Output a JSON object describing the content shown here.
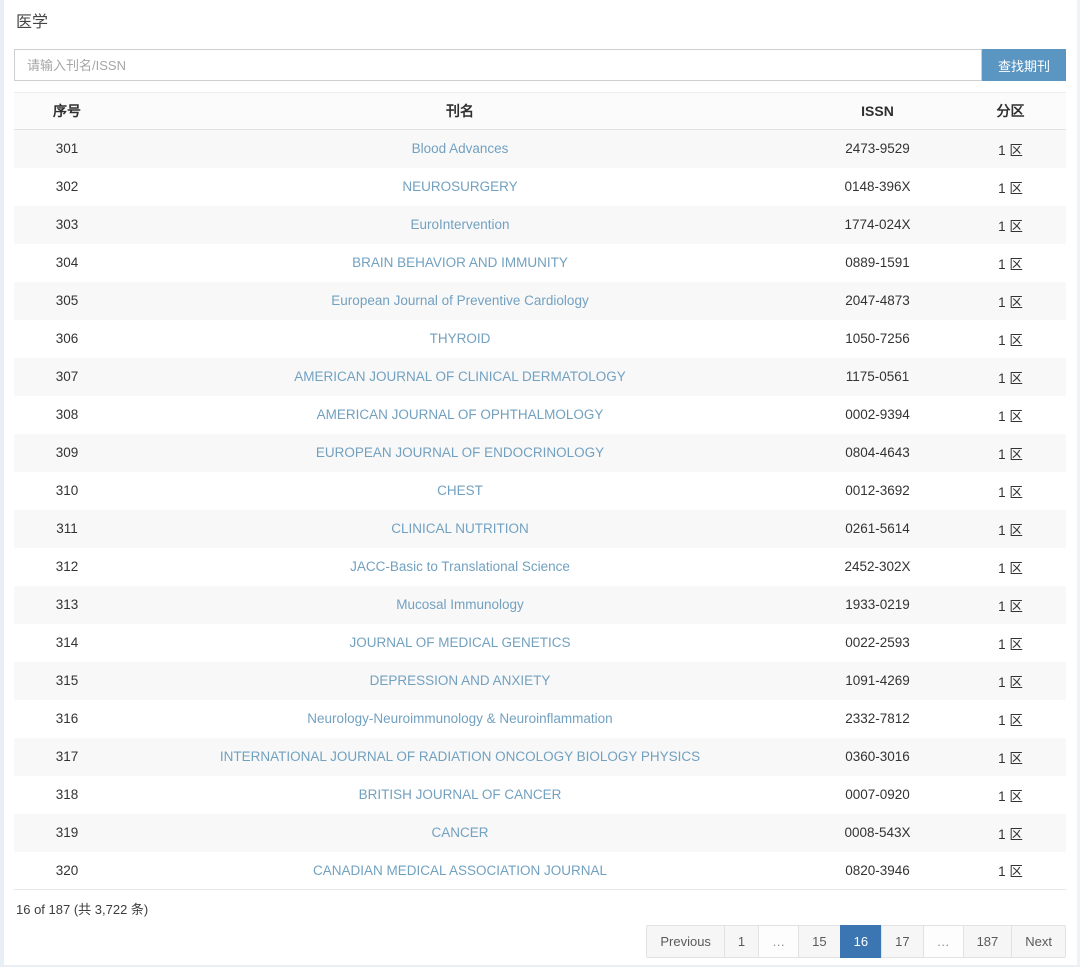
{
  "page": {
    "title": "医学"
  },
  "search": {
    "placeholder": "请输入刊名/ISSN",
    "button_label": "查找期刊"
  },
  "table": {
    "headers": {
      "index": "序号",
      "name": "刊名",
      "issn": "ISSN",
      "zone": "分区"
    },
    "rows": [
      {
        "index": "301",
        "name": "Blood Advances",
        "issn": "2473-9529",
        "zone": "1 区"
      },
      {
        "index": "302",
        "name": "NEUROSURGERY",
        "issn": "0148-396X",
        "zone": "1 区"
      },
      {
        "index": "303",
        "name": "EuroIntervention",
        "issn": "1774-024X",
        "zone": "1 区"
      },
      {
        "index": "304",
        "name": "BRAIN BEHAVIOR AND IMMUNITY",
        "issn": "0889-1591",
        "zone": "1 区"
      },
      {
        "index": "305",
        "name": "European Journal of Preventive Cardiology",
        "issn": "2047-4873",
        "zone": "1 区"
      },
      {
        "index": "306",
        "name": "THYROID",
        "issn": "1050-7256",
        "zone": "1 区"
      },
      {
        "index": "307",
        "name": "AMERICAN JOURNAL OF CLINICAL DERMATOLOGY",
        "issn": "1175-0561",
        "zone": "1 区"
      },
      {
        "index": "308",
        "name": "AMERICAN JOURNAL OF OPHTHALMOLOGY",
        "issn": "0002-9394",
        "zone": "1 区"
      },
      {
        "index": "309",
        "name": "EUROPEAN JOURNAL OF ENDOCRINOLOGY",
        "issn": "0804-4643",
        "zone": "1 区"
      },
      {
        "index": "310",
        "name": "CHEST",
        "issn": "0012-3692",
        "zone": "1 区"
      },
      {
        "index": "311",
        "name": "CLINICAL NUTRITION",
        "issn": "0261-5614",
        "zone": "1 区"
      },
      {
        "index": "312",
        "name": "JACC-Basic to Translational Science",
        "issn": "2452-302X",
        "zone": "1 区"
      },
      {
        "index": "313",
        "name": "Mucosal Immunology",
        "issn": "1933-0219",
        "zone": "1 区"
      },
      {
        "index": "314",
        "name": "JOURNAL OF MEDICAL GENETICS",
        "issn": "0022-2593",
        "zone": "1 区"
      },
      {
        "index": "315",
        "name": "DEPRESSION AND ANXIETY",
        "issn": "1091-4269",
        "zone": "1 区"
      },
      {
        "index": "316",
        "name": "Neurology-Neuroimmunology & Neuroinflammation",
        "issn": "2332-7812",
        "zone": "1 区"
      },
      {
        "index": "317",
        "name": "INTERNATIONAL JOURNAL OF RADIATION ONCOLOGY BIOLOGY PHYSICS",
        "issn": "0360-3016",
        "zone": "1 区"
      },
      {
        "index": "318",
        "name": "BRITISH JOURNAL OF CANCER",
        "issn": "0007-0920",
        "zone": "1 区"
      },
      {
        "index": "319",
        "name": "CANCER",
        "issn": "0008-543X",
        "zone": "1 区"
      },
      {
        "index": "320",
        "name": "CANADIAN MEDICAL ASSOCIATION JOURNAL",
        "issn": "0820-3946",
        "zone": "1 区"
      }
    ]
  },
  "footer": {
    "info": "16 of 187 (共 3,722 条)"
  },
  "pagination": {
    "items": [
      {
        "label": "Previous",
        "type": "nav"
      },
      {
        "label": "1",
        "type": "page"
      },
      {
        "label": "…",
        "type": "ellipsis"
      },
      {
        "label": "15",
        "type": "page"
      },
      {
        "label": "16",
        "type": "page",
        "active": true
      },
      {
        "label": "17",
        "type": "page"
      },
      {
        "label": "…",
        "type": "ellipsis"
      },
      {
        "label": "187",
        "type": "page"
      },
      {
        "label": "Next",
        "type": "nav"
      }
    ]
  },
  "colors": {
    "accent_blue": "#5b96c2",
    "active_page_blue": "#3b76b3",
    "link_blue": "#72a1c0"
  }
}
